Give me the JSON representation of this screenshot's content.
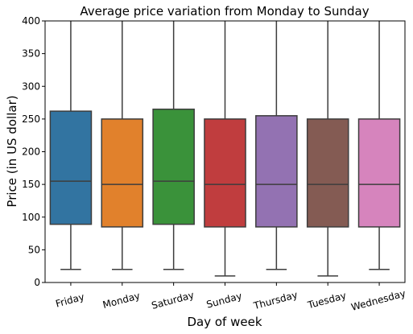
{
  "chart_data": {
    "type": "box",
    "title": "Average price variation from Monday to Sunday",
    "xlabel": "Day of week",
    "ylabel": "Price (in US dollar)",
    "ylim": [
      0,
      400
    ],
    "yticks": [
      0,
      50,
      100,
      150,
      200,
      250,
      300,
      350,
      400
    ],
    "categories": [
      "Friday",
      "Monday",
      "Saturday",
      "Sunday",
      "Thursday",
      "Tuesday",
      "Wednesday"
    ],
    "boxes": [
      {
        "category": "Friday",
        "whisker_low": 20,
        "q1": 89,
        "median": 155,
        "q3": 262,
        "whisker_high": 400,
        "color": "#3274a1"
      },
      {
        "category": "Monday",
        "whisker_low": 20,
        "q1": 85,
        "median": 150,
        "q3": 250,
        "whisker_high": 400,
        "color": "#e1812c"
      },
      {
        "category": "Saturday",
        "whisker_low": 20,
        "q1": 89,
        "median": 155,
        "q3": 265,
        "whisker_high": 400,
        "color": "#3a923a"
      },
      {
        "category": "Sunday",
        "whisker_low": 10,
        "q1": 85,
        "median": 150,
        "q3": 250,
        "whisker_high": 400,
        "color": "#c03d3e"
      },
      {
        "category": "Thursday",
        "whisker_low": 20,
        "q1": 85,
        "median": 150,
        "q3": 255,
        "whisker_high": 400,
        "color": "#9372b2"
      },
      {
        "category": "Tuesday",
        "whisker_low": 10,
        "q1": 85,
        "median": 150,
        "q3": 250,
        "whisker_high": 400,
        "color": "#845b53"
      },
      {
        "category": "Wednesday",
        "whisker_low": 20,
        "q1": 85,
        "median": 150,
        "q3": 250,
        "whisker_high": 400,
        "color": "#d684bd"
      }
    ],
    "grid": false,
    "legend": "none"
  }
}
